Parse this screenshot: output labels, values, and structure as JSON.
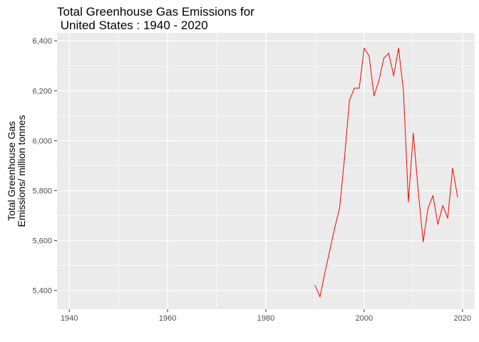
{
  "chart_data": {
    "type": "line",
    "title_lines": [
      "Total Greenhouse Gas Emissions for",
      " United States : 1940 - 2020"
    ],
    "xlabel": "",
    "ylabel_lines": [
      "Total Greenhouse Gas",
      "Emissions/ million tonnes"
    ],
    "xlim": [
      1937.5,
      2022.5
    ],
    "ylim": [
      5325,
      6432
    ],
    "x_ticks": [
      1940,
      1960,
      1980,
      2000,
      2020
    ],
    "y_ticks": [
      5400,
      5600,
      5800,
      6000,
      6200,
      6400
    ],
    "y_tick_labels": [
      "5,400",
      "5,600",
      "5,800",
      "6,000",
      "6,200",
      "6,400"
    ],
    "grid": true,
    "background": "#ebebeb",
    "series": [
      {
        "color": "#ff0000",
        "x": [
          1990,
          1991,
          1992,
          1993,
          1994,
          1995,
          1996,
          1997,
          1998,
          1999,
          2000,
          2001,
          2002,
          2003,
          2004,
          2005,
          2006,
          2007,
          2008,
          2009,
          2010,
          2011,
          2012,
          2013,
          2014,
          2015,
          2016,
          2017,
          2018,
          2019
        ],
        "values": [
          5420,
          5375,
          5470,
          5560,
          5650,
          5730,
          5930,
          6160,
          6210,
          6210,
          6370,
          6340,
          6180,
          6240,
          6330,
          6350,
          6260,
          6370,
          6200,
          5755,
          6030,
          5800,
          5595,
          5730,
          5780,
          5665,
          5740,
          5690,
          5890,
          5775
        ]
      }
    ]
  }
}
